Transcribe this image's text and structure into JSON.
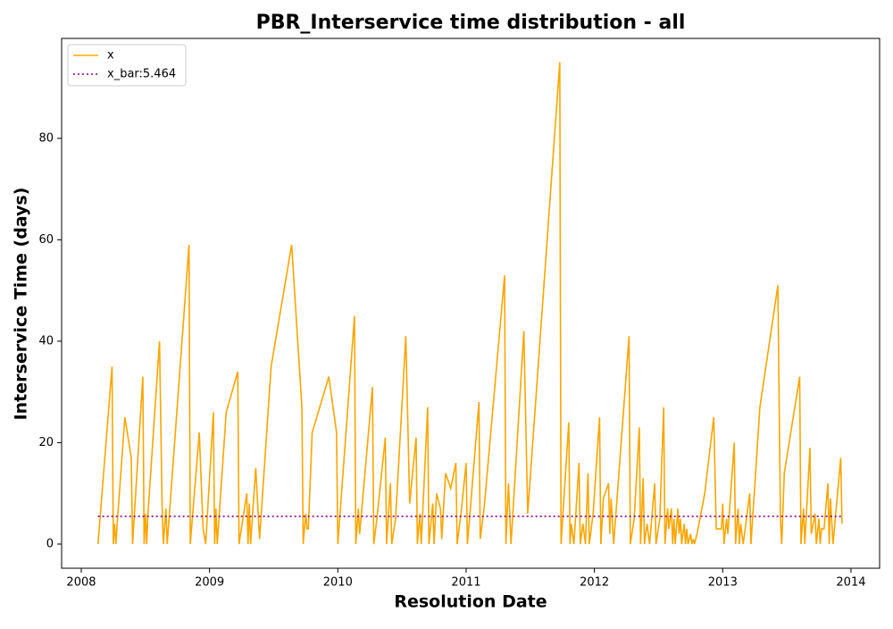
{
  "chart_data": {
    "type": "line",
    "title": "PBR_Interservice time distribution - all",
    "x_label": "Resolution Date",
    "y_label": "Interservice Time (days)",
    "xlim": [
      2007.847,
      2014.223
    ],
    "xticks": [
      2008,
      2009,
      2010,
      2011,
      2012,
      2013,
      2014
    ],
    "ylim": [
      -4.76,
      99.7
    ],
    "yticks": [
      0,
      20,
      40,
      60,
      80
    ],
    "grid": false,
    "legend": "upper left",
    "series": [
      {
        "name": "x",
        "color": "#ffa500",
        "style": "solid",
        "x": [
          2008.13,
          2008.14,
          2008.24,
          2008.25,
          2008.26,
          2008.27,
          2008.28,
          2008.34,
          2008.39,
          2008.4,
          2008.48,
          2008.49,
          2008.5,
          2008.51,
          2008.52,
          2008.61,
          2008.63,
          2008.64,
          2008.66,
          2008.67,
          2008.84,
          2008.85,
          2008.92,
          2008.95,
          2008.97,
          2009.03,
          2009.04,
          2009.05,
          2009.06,
          2009.13,
          2009.22,
          2009.23,
          2009.29,
          2009.3,
          2009.31,
          2009.32,
          2009.36,
          2009.39,
          2009.48,
          2009.64,
          2009.72,
          2009.73,
          2009.75,
          2009.76,
          2009.77,
          2009.8,
          2009.93,
          2009.99,
          2010.0,
          2010.13,
          2010.14,
          2010.16,
          2010.17,
          2010.27,
          2010.28,
          2010.3,
          2010.37,
          2010.38,
          2010.41,
          2010.42,
          2010.45,
          2010.53,
          2010.56,
          2010.61,
          2010.62,
          2010.64,
          2010.65,
          2010.7,
          2010.71,
          2010.74,
          2010.75,
          2010.77,
          2010.8,
          2010.81,
          2010.84,
          2010.88,
          2010.92,
          2010.93,
          2010.96,
          2011.0,
          2011.01,
          2011.03,
          2011.1,
          2011.11,
          2011.14,
          2011.3,
          2011.31,
          2011.33,
          2011.35,
          2011.45,
          2011.48,
          2011.73,
          2011.74,
          2011.8,
          2011.81,
          2011.82,
          2011.84,
          2011.88,
          2011.89,
          2011.91,
          2011.93,
          2011.95,
          2011.96,
          2011.99,
          2012.04,
          2012.05,
          2012.07,
          2012.11,
          2012.12,
          2012.13,
          2012.15,
          2012.27,
          2012.28,
          2012.31,
          2012.35,
          2012.36,
          2012.38,
          2012.39,
          2012.41,
          2012.43,
          2012.47,
          2012.48,
          2012.51,
          2012.54,
          2012.55,
          2012.57,
          2012.58,
          2012.6,
          2012.61,
          2012.62,
          2012.63,
          2012.65,
          2012.66,
          2012.67,
          2012.68,
          2012.7,
          2012.71,
          2012.72,
          2012.73,
          2012.75,
          2012.76,
          2012.77,
          2012.78,
          2012.8,
          2012.86,
          2012.93,
          2012.95,
          2012.99,
          2013.0,
          2013.01,
          2013.03,
          2013.04,
          2013.09,
          2013.1,
          2013.12,
          2013.13,
          2013.14,
          2013.16,
          2013.21,
          2013.22,
          2013.29,
          2013.43,
          2013.45,
          2013.46,
          2013.48,
          2013.6,
          2013.61,
          2013.63,
          2013.64,
          2013.68,
          2013.69,
          2013.72,
          2013.73,
          2013.75,
          2013.76,
          2013.77,
          2013.79,
          2013.82,
          2013.83,
          2013.84,
          2013.86,
          2013.92,
          2013.93
        ],
        "values": [
          0,
          3,
          35,
          0,
          4,
          0,
          4,
          25,
          17,
          0,
          33,
          0,
          6,
          0,
          6,
          40,
          8,
          0,
          7,
          0,
          59,
          0,
          22,
          3,
          0,
          26,
          0,
          7,
          0,
          26,
          34,
          0,
          10,
          0,
          8,
          0,
          15,
          1,
          35,
          59,
          27,
          0,
          6,
          3,
          3,
          22,
          33,
          22,
          0,
          45,
          0,
          7,
          2,
          31,
          0,
          4,
          21,
          0,
          12,
          0,
          5,
          41,
          8,
          21,
          0,
          6,
          0,
          27,
          0,
          8,
          0,
          10,
          7,
          1,
          14,
          11,
          16,
          0,
          6,
          16,
          0,
          6,
          28,
          1,
          7,
          53,
          0,
          12,
          0,
          42,
          6,
          95,
          0,
          24,
          0,
          4,
          0,
          16,
          0,
          4,
          0,
          14,
          0,
          6,
          25,
          0,
          9,
          12,
          2,
          9,
          0,
          41,
          0,
          5,
          23,
          0,
          13,
          0,
          4,
          0,
          12,
          0,
          5,
          27,
          0,
          7,
          3,
          7,
          0,
          5,
          0,
          7,
          2,
          5,
          0,
          4,
          0,
          3,
          0,
          2,
          0,
          1,
          0,
          2,
          10,
          25,
          3,
          3,
          8,
          0,
          5,
          2,
          20,
          0,
          7,
          0,
          4,
          0,
          10,
          0,
          27,
          51,
          5,
          0,
          14,
          33,
          0,
          7,
          0,
          19,
          2,
          6,
          0,
          5,
          0,
          3,
          3,
          12,
          0,
          9,
          0,
          17,
          4
        ]
      },
      {
        "name": "x_bar:5.464",
        "color": "#800080",
        "style": "dotted",
        "x": [
          2008.13,
          2013.93
        ],
        "values": [
          5.464,
          5.464
        ]
      }
    ]
  }
}
